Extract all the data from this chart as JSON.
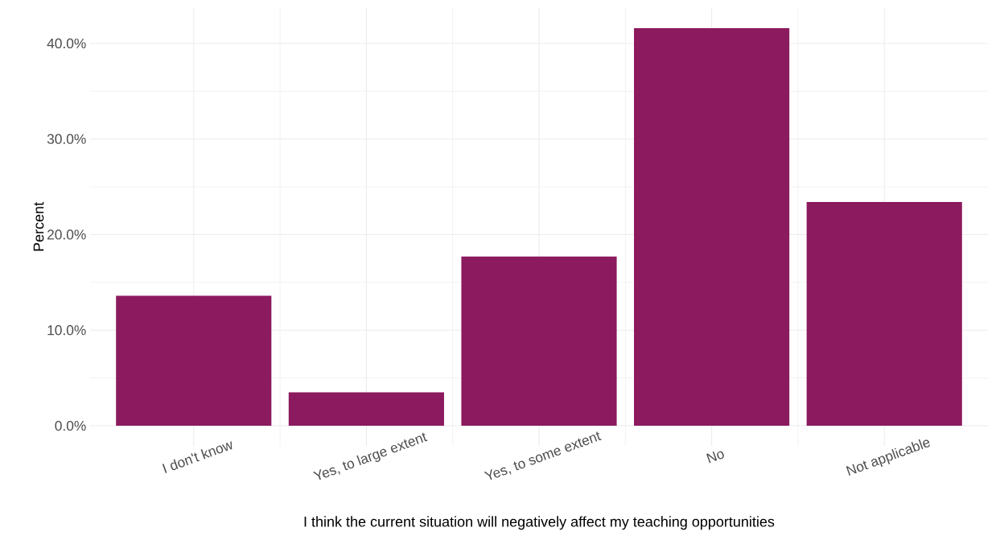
{
  "chart_data": {
    "type": "bar",
    "xlabel": "I think the current situation will negatively affect my teaching opportunities",
    "ylabel": "Percent",
    "categories": [
      "I don't know",
      "Yes, to large extent",
      "Yes, to some extent",
      "No",
      "Not applicable"
    ],
    "values": [
      13.6,
      3.5,
      17.7,
      41.6,
      23.4
    ],
    "color": "#8b1a5e",
    "ylim": [
      -2.1,
      43.7
    ],
    "yticks": [
      {
        "value": 0,
        "label": "0.0%"
      },
      {
        "value": 10,
        "label": "10.0%"
      },
      {
        "value": 20,
        "label": "20.0%"
      },
      {
        "value": 30,
        "label": "30.0%"
      },
      {
        "value": 40,
        "label": "40.0%"
      }
    ],
    "grid": true
  }
}
